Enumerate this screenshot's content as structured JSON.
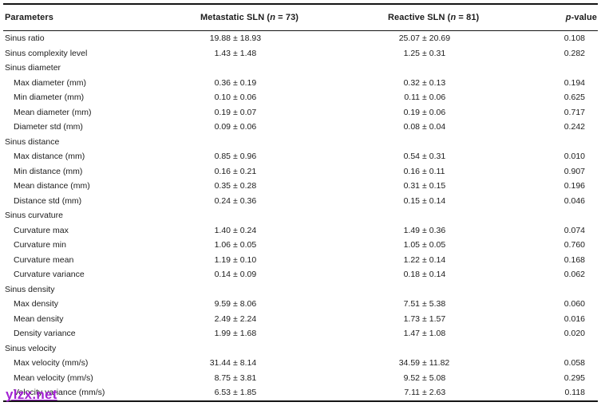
{
  "watermark": {
    "text": "ylzx.net",
    "color": "#a424d4"
  },
  "table": {
    "header": {
      "parameters": "Parameters",
      "metastatic": {
        "prefix": "Metastatic SLN (",
        "n": "n",
        "mid": " = ",
        "suffix": "73)"
      },
      "reactive": {
        "prefix": "Reactive SLN (",
        "n": "n",
        "mid": " = ",
        "suffix": "81)"
      },
      "pvalue": {
        "p": "p",
        "rest": "-value"
      }
    },
    "rows": [
      {
        "label": "Sinus ratio",
        "indent": false,
        "group": false,
        "metastatic": "19.88 ± 18.93",
        "reactive": "25.07 ± 20.69",
        "p": "0.108"
      },
      {
        "label": "Sinus complexity level",
        "indent": false,
        "group": false,
        "metastatic": "1.43 ± 1.48",
        "reactive": "1.25 ± 0.31",
        "p": "0.282"
      },
      {
        "label": "Sinus diameter",
        "indent": false,
        "group": true
      },
      {
        "label": "Max diameter (mm)",
        "indent": true,
        "group": false,
        "metastatic": "0.36 ± 0.19",
        "reactive": "0.32 ± 0.13",
        "p": "0.194"
      },
      {
        "label": "Min diameter (mm)",
        "indent": true,
        "group": false,
        "metastatic": "0.10 ± 0.06",
        "reactive": "0.11 ± 0.06",
        "p": "0.625"
      },
      {
        "label": "Mean diameter (mm)",
        "indent": true,
        "group": false,
        "metastatic": "0.19 ± 0.07",
        "reactive": "0.19 ± 0.06",
        "p": "0.717"
      },
      {
        "label": "Diameter std (mm)",
        "indent": true,
        "group": false,
        "metastatic": "0.09 ± 0.06",
        "reactive": "0.08 ± 0.04",
        "p": "0.242"
      },
      {
        "label": "Sinus distance",
        "indent": false,
        "group": true
      },
      {
        "label": "Max distance (mm)",
        "indent": true,
        "group": false,
        "metastatic": "0.85 ± 0.96",
        "reactive": "0.54 ± 0.31",
        "p": "0.010"
      },
      {
        "label": "Min distance (mm)",
        "indent": true,
        "group": false,
        "metastatic": "0.16 ± 0.21",
        "reactive": "0.16 ± 0.11",
        "p": "0.907"
      },
      {
        "label": "Mean distance (mm)",
        "indent": true,
        "group": false,
        "metastatic": "0.35 ± 0.28",
        "reactive": "0.31 ± 0.15",
        "p": "0.196"
      },
      {
        "label": "Distance std (mm)",
        "indent": true,
        "group": false,
        "metastatic": "0.24 ± 0.36",
        "reactive": "0.15 ± 0.14",
        "p": "0.046"
      },
      {
        "label": "Sinus curvature",
        "indent": false,
        "group": true
      },
      {
        "label": "Curvature max",
        "indent": true,
        "group": false,
        "metastatic": "1.40 ± 0.24",
        "reactive": "1.49 ± 0.36",
        "p": "0.074"
      },
      {
        "label": "Curvature min",
        "indent": true,
        "group": false,
        "metastatic": "1.06 ± 0.05",
        "reactive": "1.05 ± 0.05",
        "p": "0.760"
      },
      {
        "label": "Curvature mean",
        "indent": true,
        "group": false,
        "metastatic": "1.19 ± 0.10",
        "reactive": "1.22 ± 0.14",
        "p": "0.168"
      },
      {
        "label": "Curvature variance",
        "indent": true,
        "group": false,
        "metastatic": "0.14 ± 0.09",
        "reactive": "0.18 ± 0.14",
        "p": "0.062"
      },
      {
        "label": "Sinus density",
        "indent": false,
        "group": true
      },
      {
        "label": "Max density",
        "indent": true,
        "group": false,
        "metastatic": "9.59 ± 8.06",
        "reactive": "7.51 ± 5.38",
        "p": "0.060"
      },
      {
        "label": "Mean density",
        "indent": true,
        "group": false,
        "metastatic": "2.49 ± 2.24",
        "reactive": "1.73 ± 1.57",
        "p": "0.016"
      },
      {
        "label": "Density variance",
        "indent": true,
        "group": false,
        "metastatic": "1.99 ± 1.68",
        "reactive": "1.47 ± 1.08",
        "p": "0.020"
      },
      {
        "label": "Sinus velocity",
        "indent": false,
        "group": true
      },
      {
        "label": "Max velocity (mm/s)",
        "indent": true,
        "group": false,
        "metastatic": "31.44 ± 8.14",
        "reactive": "34.59 ± 11.82",
        "p": "0.058"
      },
      {
        "label": "Mean velocity (mm/s)",
        "indent": true,
        "group": false,
        "metastatic": "8.75 ± 3.81",
        "reactive": "9.52 ± 5.08",
        "p": "0.295"
      },
      {
        "label": "Velocity variance (mm/s)",
        "indent": true,
        "group": false,
        "metastatic": "6.53 ± 1.85",
        "reactive": "7.11 ± 2.63",
        "p": "0.118"
      }
    ]
  }
}
